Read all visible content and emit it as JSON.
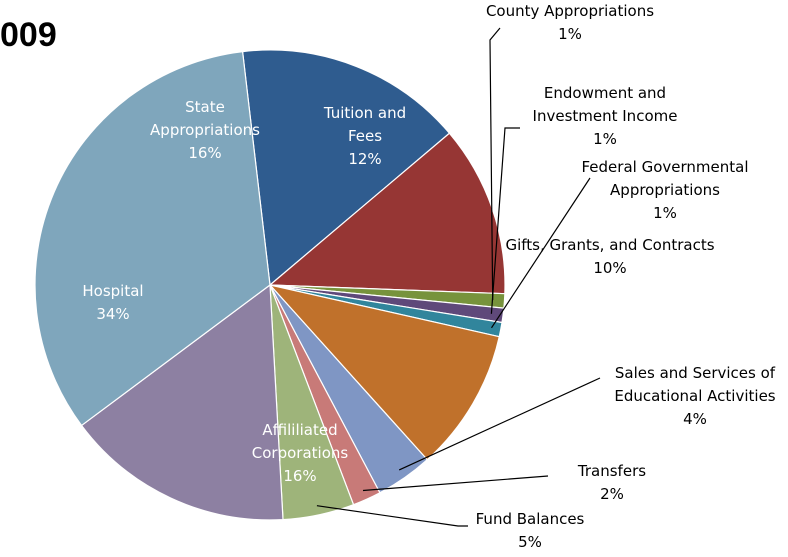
{
  "title": "009",
  "chart_data": {
    "type": "pie",
    "title": "009",
    "slices": [
      {
        "label": [
          "State",
          "Appropriations"
        ],
        "value": 16,
        "value_label": "16%",
        "color": "#2F5C8F"
      },
      {
        "label": [
          "Tuition and",
          "Fees"
        ],
        "value": 12,
        "value_label": "12%",
        "color": "#963634"
      },
      {
        "label": [
          "County Appropriations"
        ],
        "value": 1,
        "value_label": "1%",
        "color": "#77933C"
      },
      {
        "label": [
          "Endowment and",
          "Investment Income"
        ],
        "value": 1,
        "value_label": "1%",
        "color": "#5F497A"
      },
      {
        "label": [
          "Federal Governmental",
          "Appropriations"
        ],
        "value": 1,
        "value_label": "1%",
        "color": "#31859C"
      },
      {
        "label": [
          "Gifts, Grants, and Contracts"
        ],
        "value": 10,
        "value_label": "10%",
        "color": "#C0712B"
      },
      {
        "label": [
          "Sales and Services of",
          "Educational Activities"
        ],
        "value": 4,
        "value_label": "4%",
        "color": "#7F96C4"
      },
      {
        "label": [
          "Transfers"
        ],
        "value": 2,
        "value_label": "2%",
        "color": "#C87A78"
      },
      {
        "label": [
          "Fund Balances"
        ],
        "value": 5,
        "value_label": "5%",
        "color": "#9EB47A"
      },
      {
        "label": [
          "Affililiated",
          "Corporations"
        ],
        "value": 16,
        "value_label": "16%",
        "color": "#8D80A2"
      },
      {
        "label": [
          "Hospital"
        ],
        "value": 34,
        "value_label": "34%",
        "color": "#7FA6BC"
      }
    ]
  }
}
